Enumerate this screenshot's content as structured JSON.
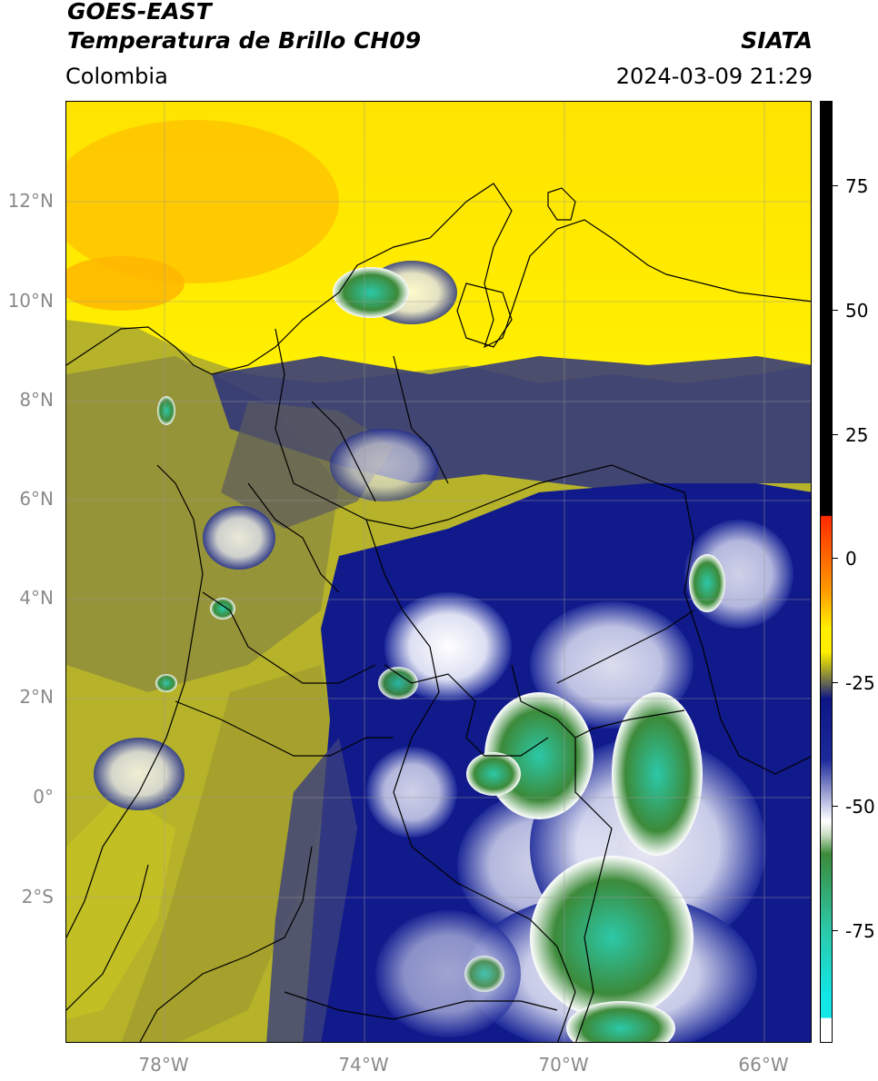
{
  "header": {
    "satellite": "GOES-EAST",
    "product": "Temperatura de Brillo CH09",
    "agency": "SIATA",
    "region": "Colombia",
    "datetime": "2024-03-09 21:29"
  },
  "map": {
    "lat_labels": [
      "12°N",
      "10°N",
      "8°N",
      "6°N",
      "4°N",
      "2°N",
      "0°",
      "2°S"
    ],
    "lon_labels": [
      "78°W",
      "74°W",
      "70°W",
      "66°W"
    ]
  },
  "colorbar": {
    "ticks": [
      "75",
      "50",
      "25",
      "0",
      "-25",
      "-50",
      "-75"
    ],
    "colors": {
      "black": "#000000",
      "red": "#ff2a00",
      "orange": "#ff9a00",
      "yellow": "#ffee00",
      "olive": "#b9b51d",
      "gray": "#5e5f57",
      "navy": "#0d1585",
      "white": "#ffffff",
      "green": "#3c8a3a",
      "teal": "#2cc8a8",
      "cyan": "#12e6e6"
    }
  }
}
